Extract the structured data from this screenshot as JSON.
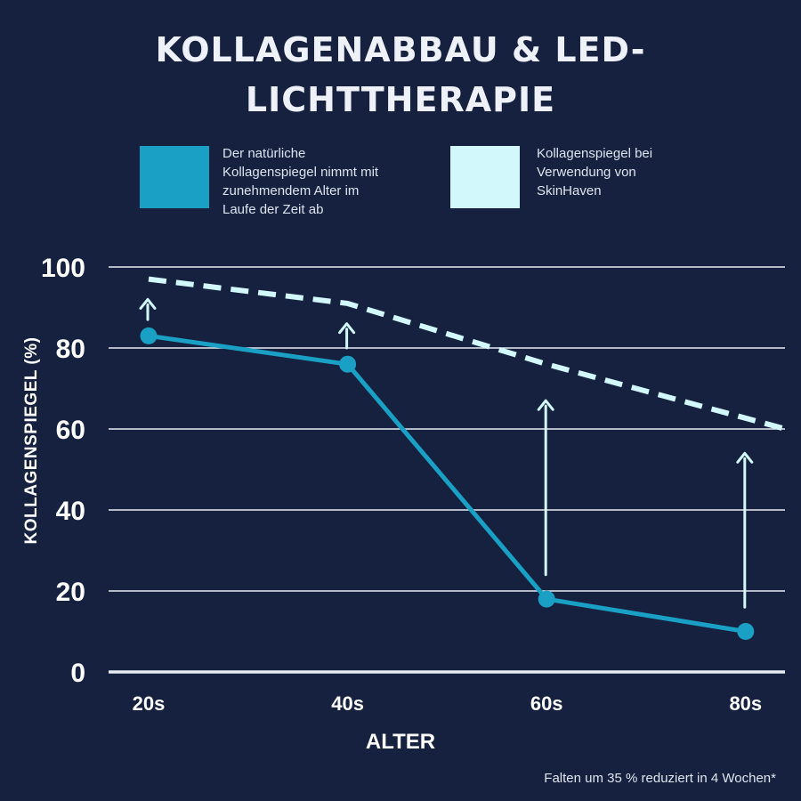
{
  "chart_data": {
    "type": "line",
    "title": "KOLLAGENABBAU & LED-LICHTTHERAPIE",
    "title_lines": [
      "KOLLAGENABBAU & LED-",
      "LICHTTHERAPIE"
    ],
    "xlabel": "ALTER",
    "ylabel": "KOLLAGENSPIEGEL (%)",
    "categories": [
      "20s",
      "40s",
      "60s",
      "80s"
    ],
    "ylim": [
      0,
      100
    ],
    "yticks": [
      0,
      20,
      40,
      60,
      80,
      100
    ],
    "grid": true,
    "series": [
      {
        "name": "Der natürliche Kollagenspiegel nimmt mit zunehmendem Alter im Laufe der Zeit ab",
        "legend_lines": [
          "Der natürliche",
          "Kollagenspiegel nimmt mit",
          "zunehmendem Alter im",
          "Laufe der Zeit ab"
        ],
        "values": [
          83,
          76,
          18,
          10
        ],
        "color": "#1aa0c4",
        "style": "solid-markers"
      },
      {
        "name": "Kollagenspiegel bei Verwendung von SkinHaven",
        "legend_lines": [
          "Kollagenspiegel bei",
          "Verwendung von",
          "SkinHaven"
        ],
        "x": [
          0,
          1,
          2,
          3.2
        ],
        "values": [
          97,
          91,
          76,
          60
        ],
        "color": "#d2f8fb",
        "style": "dashed"
      }
    ],
    "annotations": [
      {
        "type": "arrow",
        "category": "20s",
        "from": 87,
        "to": 92
      },
      {
        "type": "arrow",
        "category": "40s",
        "from": 80,
        "to": 86
      },
      {
        "type": "arrow",
        "category": "60s",
        "from": 24,
        "to": 67
      },
      {
        "type": "arrow",
        "category": "80s",
        "from": 16,
        "to": 54
      }
    ],
    "footnote": "Falten um 35 % reduziert in 4 Wochen*"
  },
  "colors": {
    "background": "#15213f",
    "grid": "#e8ecf3",
    "natural": "#1aa0c4",
    "skinhaven": "#d2f8fb"
  }
}
